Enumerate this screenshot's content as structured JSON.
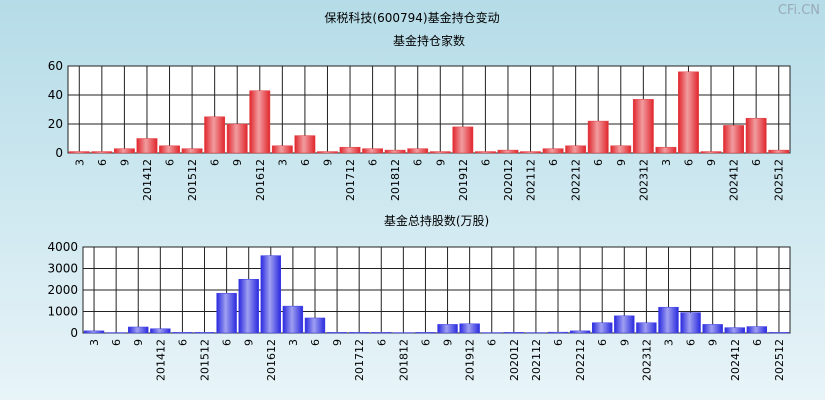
{
  "title": "保税科技(600794)基金持仓变动",
  "watermark": "CFi.CN",
  "chart_data": [
    {
      "type": "bar",
      "title": "基金持仓家数",
      "categories": [
        "3",
        "6",
        "9",
        "201412",
        "6",
        "201512",
        "6",
        "9",
        "201612",
        "3",
        "6",
        "9",
        "201712",
        "6",
        "201812",
        "6",
        "9",
        "201912",
        "6",
        "202012",
        "202112",
        "6",
        "202212",
        "6",
        "9",
        "202312",
        "3",
        "6",
        "9",
        "202412",
        "6",
        "202512"
      ],
      "values": [
        1,
        1,
        3,
        10,
        5,
        3,
        25,
        20,
        43,
        5,
        12,
        1,
        4,
        3,
        2,
        3,
        1,
        18,
        1,
        2,
        1,
        3,
        5,
        22,
        5,
        37,
        4,
        56,
        1,
        19,
        24,
        2
      ],
      "color": "#e0262c",
      "ylim": [
        0,
        60
      ],
      "yticks": [
        0,
        20,
        40,
        60
      ],
      "grid": true
    },
    {
      "type": "bar",
      "title": "基金总持股数(万股)",
      "categories": [
        "3",
        "6",
        "9",
        "201412",
        "6",
        "201512",
        "6",
        "9",
        "201612",
        "3",
        "6",
        "9",
        "201712",
        "6",
        "201812",
        "6",
        "9",
        "201912",
        "6",
        "202012",
        "202112",
        "6",
        "202212",
        "6",
        "9",
        "202312",
        "3",
        "6",
        "9",
        "202412",
        "6",
        "202512"
      ],
      "values": [
        100,
        20,
        280,
        200,
        30,
        30,
        1850,
        2500,
        3600,
        1250,
        700,
        30,
        30,
        30,
        20,
        30,
        400,
        430,
        20,
        30,
        20,
        40,
        100,
        480,
        800,
        480,
        1200,
        950,
        400,
        250,
        300,
        30
      ],
      "color": "#2a2ae0",
      "ylim": [
        0,
        4000
      ],
      "yticks": [
        0,
        1000,
        2000,
        3000,
        4000
      ],
      "grid": true
    }
  ]
}
